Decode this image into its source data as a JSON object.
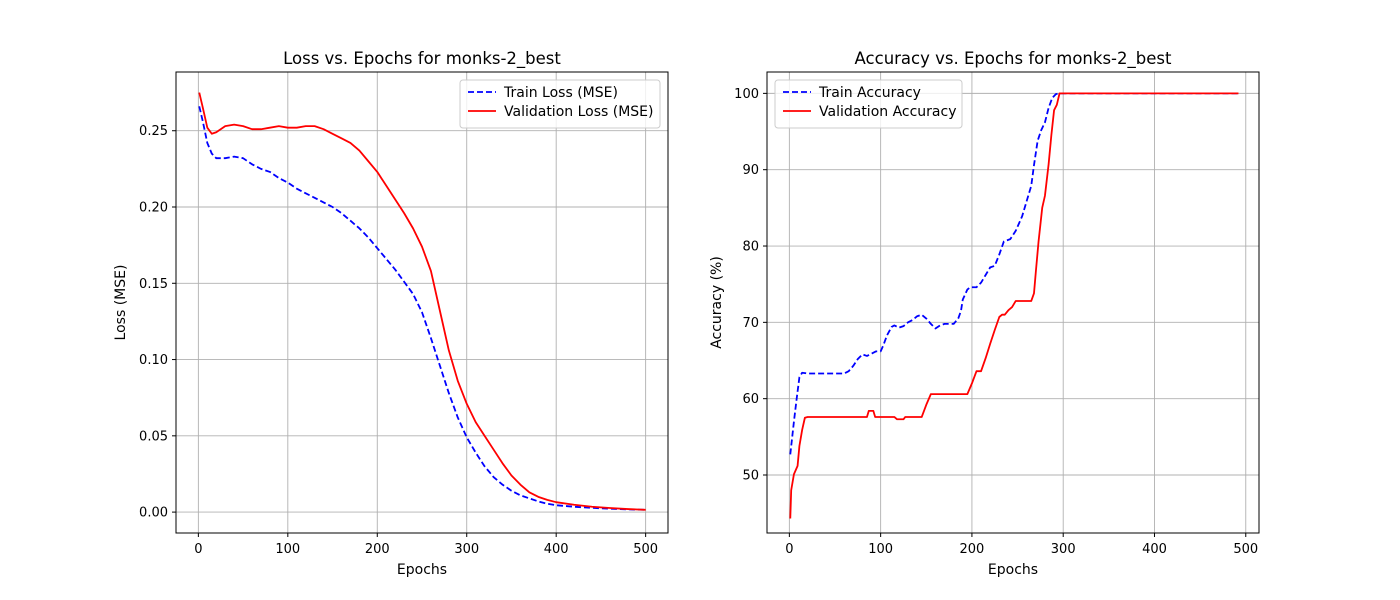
{
  "chart_data": [
    {
      "type": "line",
      "title": "Loss vs. Epochs for monks-2_best",
      "xlabel": "Epochs",
      "ylabel": "Loss (MSE)",
      "xlim": [
        -25,
        525
      ],
      "ylim": [
        -0.0137,
        0.2885
      ],
      "xticks": [
        0,
        100,
        200,
        300,
        400,
        500
      ],
      "xtick_labels": [
        "0",
        "100",
        "200",
        "300",
        "400",
        "500"
      ],
      "yticks": [
        0.0,
        0.05,
        0.1,
        0.15,
        0.2,
        0.25
      ],
      "ytick_labels": [
        "0.00",
        "0.05",
        "0.10",
        "0.15",
        "0.20",
        "0.25"
      ],
      "grid": true,
      "legend_position": "top-right",
      "series": [
        {
          "name": "Train Loss (MSE)",
          "color": "#0000ff",
          "dash": "dashed",
          "points": [
            [
              1,
              0.266
            ],
            [
              5,
              0.256
            ],
            [
              10,
              0.242
            ],
            [
              15,
              0.235
            ],
            [
              20,
              0.232
            ],
            [
              30,
              0.232
            ],
            [
              40,
              0.233
            ],
            [
              50,
              0.232
            ],
            [
              60,
              0.228
            ],
            [
              70,
              0.225
            ],
            [
              80,
              0.223
            ],
            [
              90,
              0.219
            ],
            [
              100,
              0.216
            ],
            [
              110,
              0.212
            ],
            [
              120,
              0.209
            ],
            [
              130,
              0.206
            ],
            [
              140,
              0.203
            ],
            [
              150,
              0.2
            ],
            [
              160,
              0.196
            ],
            [
              170,
              0.191
            ],
            [
              180,
              0.186
            ],
            [
              190,
              0.18
            ],
            [
              200,
              0.173
            ],
            [
              210,
              0.166
            ],
            [
              220,
              0.159
            ],
            [
              230,
              0.151
            ],
            [
              240,
              0.143
            ],
            [
              250,
              0.131
            ],
            [
              260,
              0.114
            ],
            [
              270,
              0.096
            ],
            [
              280,
              0.078
            ],
            [
              290,
              0.062
            ],
            [
              300,
              0.049
            ],
            [
              310,
              0.039
            ],
            [
              320,
              0.03
            ],
            [
              330,
              0.023
            ],
            [
              340,
              0.018
            ],
            [
              350,
              0.014
            ],
            [
              360,
              0.011
            ],
            [
              370,
              0.009
            ],
            [
              380,
              0.007
            ],
            [
              390,
              0.0055
            ],
            [
              400,
              0.0045
            ],
            [
              420,
              0.0035
            ],
            [
              440,
              0.0028
            ],
            [
              460,
              0.0022
            ],
            [
              480,
              0.0018
            ],
            [
              500,
              0.0015
            ]
          ]
        },
        {
          "name": "Validation Loss (MSE)",
          "color": "#ff0000",
          "dash": "solid",
          "points": [
            [
              1,
              0.275
            ],
            [
              5,
              0.265
            ],
            [
              10,
              0.252
            ],
            [
              15,
              0.248
            ],
            [
              20,
              0.249
            ],
            [
              30,
              0.253
            ],
            [
              40,
              0.254
            ],
            [
              50,
              0.253
            ],
            [
              60,
              0.251
            ],
            [
              70,
              0.251
            ],
            [
              80,
              0.252
            ],
            [
              90,
              0.253
            ],
            [
              100,
              0.252
            ],
            [
              110,
              0.252
            ],
            [
              120,
              0.253
            ],
            [
              130,
              0.253
            ],
            [
              140,
              0.251
            ],
            [
              150,
              0.248
            ],
            [
              160,
              0.245
            ],
            [
              170,
              0.242
            ],
            [
              180,
              0.237
            ],
            [
              190,
              0.23
            ],
            [
              200,
              0.223
            ],
            [
              210,
              0.214
            ],
            [
              220,
              0.205
            ],
            [
              230,
              0.196
            ],
            [
              240,
              0.186
            ],
            [
              250,
              0.174
            ],
            [
              260,
              0.158
            ],
            [
              270,
              0.132
            ],
            [
              280,
              0.106
            ],
            [
              290,
              0.086
            ],
            [
              300,
              0.071
            ],
            [
              310,
              0.059
            ],
            [
              320,
              0.05
            ],
            [
              330,
              0.041
            ],
            [
              340,
              0.032
            ],
            [
              350,
              0.024
            ],
            [
              360,
              0.018
            ],
            [
              370,
              0.013
            ],
            [
              380,
              0.01
            ],
            [
              390,
              0.008
            ],
            [
              400,
              0.0065
            ],
            [
              420,
              0.0048
            ],
            [
              440,
              0.0035
            ],
            [
              460,
              0.0027
            ],
            [
              480,
              0.002
            ],
            [
              500,
              0.0015
            ]
          ]
        }
      ]
    },
    {
      "type": "line",
      "title": "Accuracy vs. Epochs for monks-2_best",
      "xlabel": "Epochs",
      "ylabel": "Accuracy (%)",
      "xlim": [
        -24.5,
        514.5
      ],
      "ylim": [
        42.4,
        102.8
      ],
      "xticks": [
        0,
        100,
        200,
        300,
        400,
        500
      ],
      "xtick_labels": [
        "0",
        "100",
        "200",
        "300",
        "400",
        "500"
      ],
      "yticks": [
        50,
        60,
        70,
        80,
        90,
        100
      ],
      "ytick_labels": [
        "50",
        "60",
        "70",
        "80",
        "90",
        "100"
      ],
      "grid": true,
      "legend_position": "top-left",
      "series": [
        {
          "name": "Train Accuracy",
          "color": "#0000ff",
          "dash": "dashed",
          "points": [
            [
              1,
              52.7
            ],
            [
              5,
              57
            ],
            [
              8,
              60
            ],
            [
              11,
              62.8
            ],
            [
              14,
              63.4
            ],
            [
              20,
              63.3
            ],
            [
              40,
              63.3
            ],
            [
              60,
              63.3
            ],
            [
              65,
              63.6
            ],
            [
              70,
              64.3
            ],
            [
              75,
              65.2
            ],
            [
              80,
              65.8
            ],
            [
              85,
              65.6
            ],
            [
              90,
              65.9
            ],
            [
              95,
              66.2
            ],
            [
              100,
              66.2
            ],
            [
              103,
              67
            ],
            [
              107,
              68.3
            ],
            [
              112,
              69.4
            ],
            [
              115,
              69.6
            ],
            [
              120,
              69.3
            ],
            [
              125,
              69.5
            ],
            [
              130,
              70
            ],
            [
              135,
              70.3
            ],
            [
              140,
              70.8
            ],
            [
              145,
              71
            ],
            [
              150,
              70.5
            ],
            [
              155,
              69.8
            ],
            [
              160,
              69.2
            ],
            [
              165,
              69.6
            ],
            [
              170,
              69.8
            ],
            [
              180,
              69.8
            ],
            [
              185,
              70.5
            ],
            [
              188,
              71.5
            ],
            [
              190,
              73
            ],
            [
              195,
              74.3
            ],
            [
              198,
              74.6
            ],
            [
              205,
              74.6
            ],
            [
              210,
              75.2
            ],
            [
              215,
              76.2
            ],
            [
              220,
              77.2
            ],
            [
              225,
              77.4
            ],
            [
              230,
              78.9
            ],
            [
              235,
              80.6
            ],
            [
              242,
              80.9
            ],
            [
              248,
              82
            ],
            [
              255,
              83.9
            ],
            [
              260,
              85.9
            ],
            [
              265,
              87.9
            ],
            [
              268,
              90.6
            ],
            [
              272,
              93.8
            ],
            [
              276,
              95.2
            ],
            [
              280,
              96.2
            ],
            [
              284,
              98.1
            ],
            [
              288,
              99.4
            ],
            [
              292,
              99.9
            ],
            [
              296,
              100
            ],
            [
              350,
              100
            ],
            [
              450,
              100
            ],
            [
              492,
              100
            ]
          ]
        },
        {
          "name": "Validation Accuracy",
          "color": "#ff0000",
          "dash": "solid",
          "points": [
            [
              1,
              44.3
            ],
            [
              2,
              48
            ],
            [
              5,
              50.1
            ],
            [
              9,
              51.2
            ],
            [
              11,
              53.8
            ],
            [
              14,
              55.9
            ],
            [
              17,
              57.5
            ],
            [
              20,
              57.6
            ],
            [
              50,
              57.6
            ],
            [
              85,
              57.6
            ],
            [
              87,
              58.4
            ],
            [
              92,
              58.4
            ],
            [
              94,
              57.6
            ],
            [
              100,
              57.6
            ],
            [
              115,
              57.6
            ],
            [
              118,
              57.3
            ],
            [
              125,
              57.3
            ],
            [
              127,
              57.6
            ],
            [
              145,
              57.6
            ],
            [
              150,
              59.2
            ],
            [
              155,
              60.6
            ],
            [
              170,
              60.6
            ],
            [
              195,
              60.6
            ],
            [
              200,
              62
            ],
            [
              205,
              63.6
            ],
            [
              210,
              63.6
            ],
            [
              215,
              65.3
            ],
            [
              220,
              67.2
            ],
            [
              225,
              69
            ],
            [
              230,
              70.7
            ],
            [
              233,
              71
            ],
            [
              236,
              71
            ],
            [
              240,
              71.6
            ],
            [
              244,
              72
            ],
            [
              248,
              72.8
            ],
            [
              255,
              72.8
            ],
            [
              265,
              72.8
            ],
            [
              268,
              73.8
            ],
            [
              270,
              76.6
            ],
            [
              273,
              80.6
            ],
            [
              277,
              85
            ],
            [
              280,
              86.6
            ],
            [
              284,
              90.7
            ],
            [
              287,
              94.5
            ],
            [
              290,
              97.8
            ],
            [
              293,
              98.5
            ],
            [
              296,
              100
            ],
            [
              300,
              100
            ],
            [
              400,
              100
            ],
            [
              492,
              100
            ]
          ]
        }
      ]
    }
  ]
}
